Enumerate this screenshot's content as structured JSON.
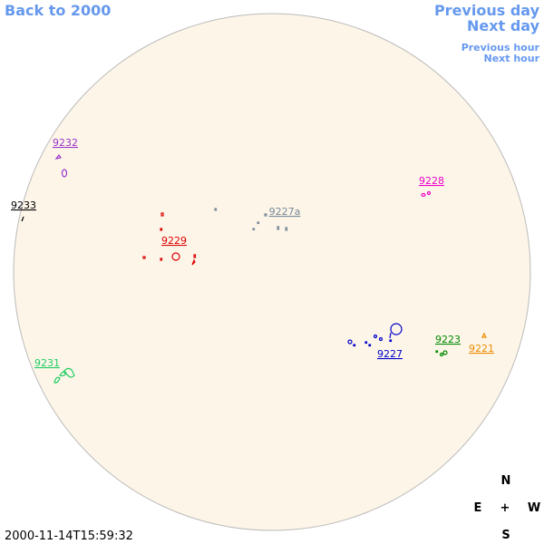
{
  "nav": {
    "back": "Back to 2000",
    "previous_day": "Previous day",
    "next_day": "Next day",
    "previous_hour": "Previous hour",
    "next_hour": "Next hour"
  },
  "regions": [
    {
      "label": "9232",
      "color": "#9933cc"
    },
    {
      "label": "9233",
      "color": "#000000"
    },
    {
      "label": "9229",
      "color": "#dd0000"
    },
    {
      "label": "9227a",
      "color": "#778899"
    },
    {
      "label": "9228",
      "color": "#ee00cc"
    },
    {
      "label": "9223",
      "color": "#008800"
    },
    {
      "label": "9221",
      "color": "#ee8800"
    },
    {
      "label": "9227",
      "color": "#0000cc"
    },
    {
      "label": "9231",
      "color": "#22cc66"
    }
  ],
  "compass": {
    "north": "N",
    "east": "E",
    "center": "+",
    "west": "W",
    "south": "S"
  },
  "timestamp": "2000-11-14T15:59:32"
}
